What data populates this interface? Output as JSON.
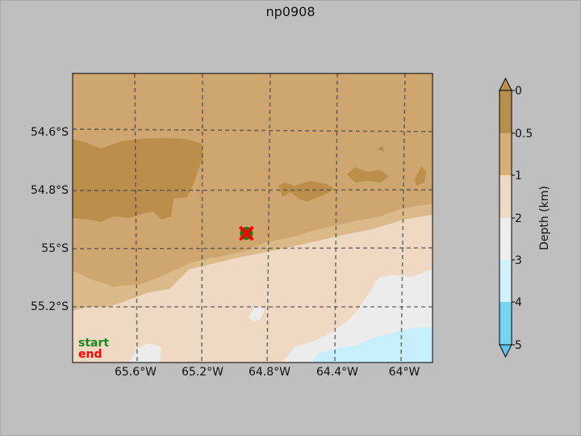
{
  "title": "np0908",
  "map": {
    "lat_ticks": [
      "54.6°S",
      "54.8°S",
      "55°S",
      "55.2°S"
    ],
    "lon_ticks": [
      "65.6°W",
      "65.2°W",
      "64.8°W",
      "64.4°W",
      "64°W"
    ],
    "legend": {
      "start": "start",
      "end": "end"
    },
    "markers": {
      "start": {
        "lon": -64.94,
        "lat": -54.95,
        "color": "#1a7a1a"
      },
      "end": {
        "lon": -64.94,
        "lat": -54.95,
        "color": "#ff0000"
      }
    }
  },
  "colorbar": {
    "label": "Depth (km)",
    "ticks": [
      "0",
      "0.5",
      "1",
      "2",
      "3",
      "4",
      "5"
    ],
    "colors": [
      "#b98f4d",
      "#d6ae77",
      "#f0d9c4",
      "#eeeeee",
      "#d2f2fb",
      "#78d5f2",
      "#5bc3e8"
    ]
  }
}
